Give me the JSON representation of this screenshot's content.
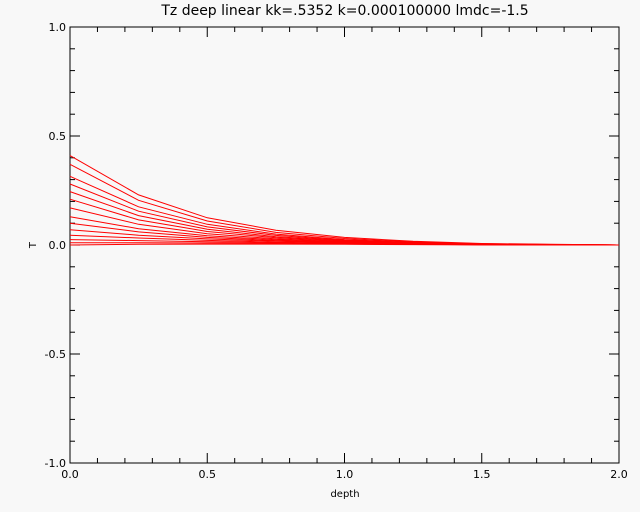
{
  "chart_data": {
    "type": "line",
    "title": "Tz deep linear kk=.5352 k=0.000100000 lmdc=-1.5",
    "xlabel": "depth",
    "ylabel": "T",
    "xlim": [
      0.0,
      2.0
    ],
    "ylim": [
      -1.0,
      1.0
    ],
    "x_ticks": [
      "0.0",
      "0.5",
      "1.0",
      "1.5",
      "2.0"
    ],
    "y_ticks": [
      "-1.0",
      "-0.5",
      "0.0",
      "0.5",
      "1.0"
    ],
    "grid": false,
    "line_color": "#ff0000",
    "series": [
      {
        "points": [
          [
            0.0,
            0.41
          ],
          [
            0.25,
            0.23
          ],
          [
            0.5,
            0.125
          ],
          [
            0.75,
            0.068
          ],
          [
            1.0,
            0.035
          ],
          [
            1.25,
            0.017
          ],
          [
            1.5,
            0.007
          ],
          [
            1.75,
            0.003
          ],
          [
            2.0,
            0.0
          ]
        ]
      },
      {
        "points": [
          [
            0.0,
            0.37
          ],
          [
            0.25,
            0.205
          ],
          [
            0.5,
            0.11
          ],
          [
            0.75,
            0.058
          ],
          [
            1.0,
            0.03
          ],
          [
            1.25,
            0.014
          ],
          [
            1.5,
            0.006
          ],
          [
            1.75,
            0.0025
          ],
          [
            2.0,
            0.0
          ]
        ]
      },
      {
        "points": [
          [
            0.0,
            0.315
          ],
          [
            0.25,
            0.175
          ],
          [
            0.5,
            0.095
          ],
          [
            0.75,
            0.05
          ],
          [
            1.0,
            0.025
          ],
          [
            1.25,
            0.012
          ],
          [
            1.5,
            0.005
          ],
          [
            1.75,
            0.002
          ],
          [
            2.0,
            0.0
          ]
        ]
      },
      {
        "points": [
          [
            0.0,
            0.28
          ],
          [
            0.25,
            0.155
          ],
          [
            0.5,
            0.083
          ],
          [
            0.75,
            0.044
          ],
          [
            1.0,
            0.022
          ],
          [
            1.25,
            0.011
          ],
          [
            1.5,
            0.0045
          ],
          [
            1.75,
            0.002
          ],
          [
            2.0,
            0.0
          ]
        ]
      },
      {
        "points": [
          [
            0.0,
            0.245
          ],
          [
            0.25,
            0.135
          ],
          [
            0.5,
            0.072
          ],
          [
            0.75,
            0.038
          ],
          [
            1.0,
            0.02
          ],
          [
            1.25,
            0.0095
          ],
          [
            1.5,
            0.004
          ],
          [
            1.75,
            0.0015
          ],
          [
            2.0,
            0.0
          ]
        ]
      },
      {
        "points": [
          [
            0.0,
            0.21
          ],
          [
            0.25,
            0.115
          ],
          [
            0.5,
            0.062
          ],
          [
            0.75,
            0.033
          ],
          [
            1.0,
            0.017
          ],
          [
            1.25,
            0.008
          ],
          [
            1.5,
            0.0035
          ],
          [
            1.75,
            0.0012
          ],
          [
            2.0,
            0.0
          ]
        ]
      },
      {
        "points": [
          [
            0.0,
            0.17
          ],
          [
            0.25,
            0.095
          ],
          [
            0.5,
            0.052
          ],
          [
            0.75,
            0.028
          ],
          [
            1.0,
            0.015
          ],
          [
            1.25,
            0.007
          ],
          [
            1.5,
            0.003
          ],
          [
            1.75,
            0.001
          ],
          [
            2.0,
            0.0
          ]
        ]
      },
      {
        "points": [
          [
            0.0,
            0.13
          ],
          [
            0.25,
            0.075
          ],
          [
            0.5,
            0.042
          ],
          [
            0.75,
            0.024
          ],
          [
            1.0,
            0.013
          ],
          [
            1.25,
            0.006
          ],
          [
            1.5,
            0.0025
          ],
          [
            1.75,
            0.001
          ],
          [
            2.0,
            0.0
          ]
        ]
      },
      {
        "points": [
          [
            0.0,
            0.1
          ],
          [
            0.25,
            0.06
          ],
          [
            0.5,
            0.035
          ],
          [
            0.75,
            0.02
          ],
          [
            1.0,
            0.011
          ],
          [
            1.25,
            0.005
          ],
          [
            1.5,
            0.002
          ],
          [
            1.75,
            0.0008
          ],
          [
            2.0,
            0.0
          ]
        ]
      },
      {
        "points": [
          [
            0.0,
            0.07
          ],
          [
            0.25,
            0.045
          ],
          [
            0.5,
            0.028
          ],
          [
            0.75,
            0.017
          ],
          [
            1.0,
            0.0095
          ],
          [
            1.25,
            0.0045
          ],
          [
            1.5,
            0.0018
          ],
          [
            1.75,
            0.0007
          ],
          [
            2.0,
            0.0
          ]
        ]
      },
      {
        "points": [
          [
            0.0,
            0.045
          ],
          [
            0.25,
            0.032
          ],
          [
            0.5,
            0.021
          ],
          [
            0.75,
            0.013
          ],
          [
            1.0,
            0.008
          ],
          [
            1.25,
            0.004
          ],
          [
            1.5,
            0.0015
          ],
          [
            1.75,
            0.0006
          ],
          [
            2.0,
            0.0
          ]
        ]
      },
      {
        "points": [
          [
            0.0,
            0.025
          ],
          [
            0.25,
            0.02
          ],
          [
            0.5,
            0.015
          ],
          [
            0.75,
            0.01
          ],
          [
            1.0,
            0.006
          ],
          [
            1.25,
            0.003
          ],
          [
            1.5,
            0.0012
          ],
          [
            1.75,
            0.0005
          ],
          [
            2.0,
            0.0
          ]
        ]
      },
      {
        "points": [
          [
            0.0,
            0.01
          ],
          [
            0.25,
            0.01
          ],
          [
            0.5,
            0.009
          ],
          [
            0.75,
            0.007
          ],
          [
            1.0,
            0.0045
          ],
          [
            1.25,
            0.0025
          ],
          [
            1.5,
            0.001
          ],
          [
            1.75,
            0.0004
          ],
          [
            2.0,
            0.0
          ]
        ]
      },
      {
        "points": [
          [
            0.0,
            0.0
          ],
          [
            0.25,
            0.003
          ],
          [
            0.5,
            0.004
          ],
          [
            0.75,
            0.004
          ],
          [
            1.0,
            0.003
          ],
          [
            1.25,
            0.0018
          ],
          [
            1.5,
            0.0008
          ],
          [
            1.75,
            0.0003
          ],
          [
            2.0,
            0.0
          ]
        ]
      }
    ]
  }
}
